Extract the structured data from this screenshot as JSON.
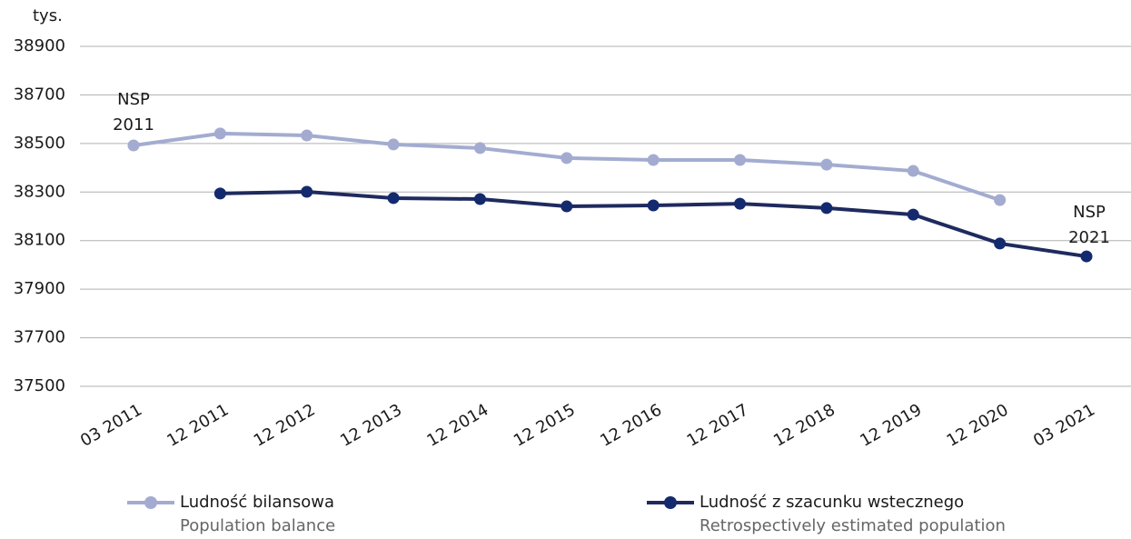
{
  "chart_data": {
    "type": "line",
    "y_unit": "tys.",
    "categories": [
      "03 2011",
      "12 2011",
      "12 2012",
      "12 2013",
      "12 2014",
      "12 2015",
      "12 2016",
      "12 2017",
      "12 2018",
      "12 2019",
      "12 2020",
      "03 2021"
    ],
    "series": [
      {
        "name": "Ludność bilansowa",
        "name_en": "Population balance",
        "color": "#a3acd0",
        "values": [
          38492,
          38541,
          38533,
          38496,
          38481,
          38440,
          38432,
          38432,
          38413,
          38387,
          38267,
          null
        ]
      },
      {
        "name": "Ludność z szacunku wstecznego",
        "name_en": "Retrospectively estimated population",
        "color": "#1f2a5e",
        "marker_color": "#142a6e",
        "values": [
          null,
          38294,
          38301,
          38275,
          38271,
          38241,
          38245,
          38252,
          38234,
          38207,
          38088,
          38035
        ]
      }
    ],
    "annotations": [
      {
        "lines": [
          "NSP",
          "2011"
        ]
      },
      {
        "lines": [
          "NSP",
          "2021"
        ]
      }
    ],
    "ylim": [
      37500,
      38900
    ],
    "yticks": [
      37500,
      37700,
      37900,
      38100,
      38300,
      38500,
      38700,
      38900
    ],
    "grid": true
  }
}
